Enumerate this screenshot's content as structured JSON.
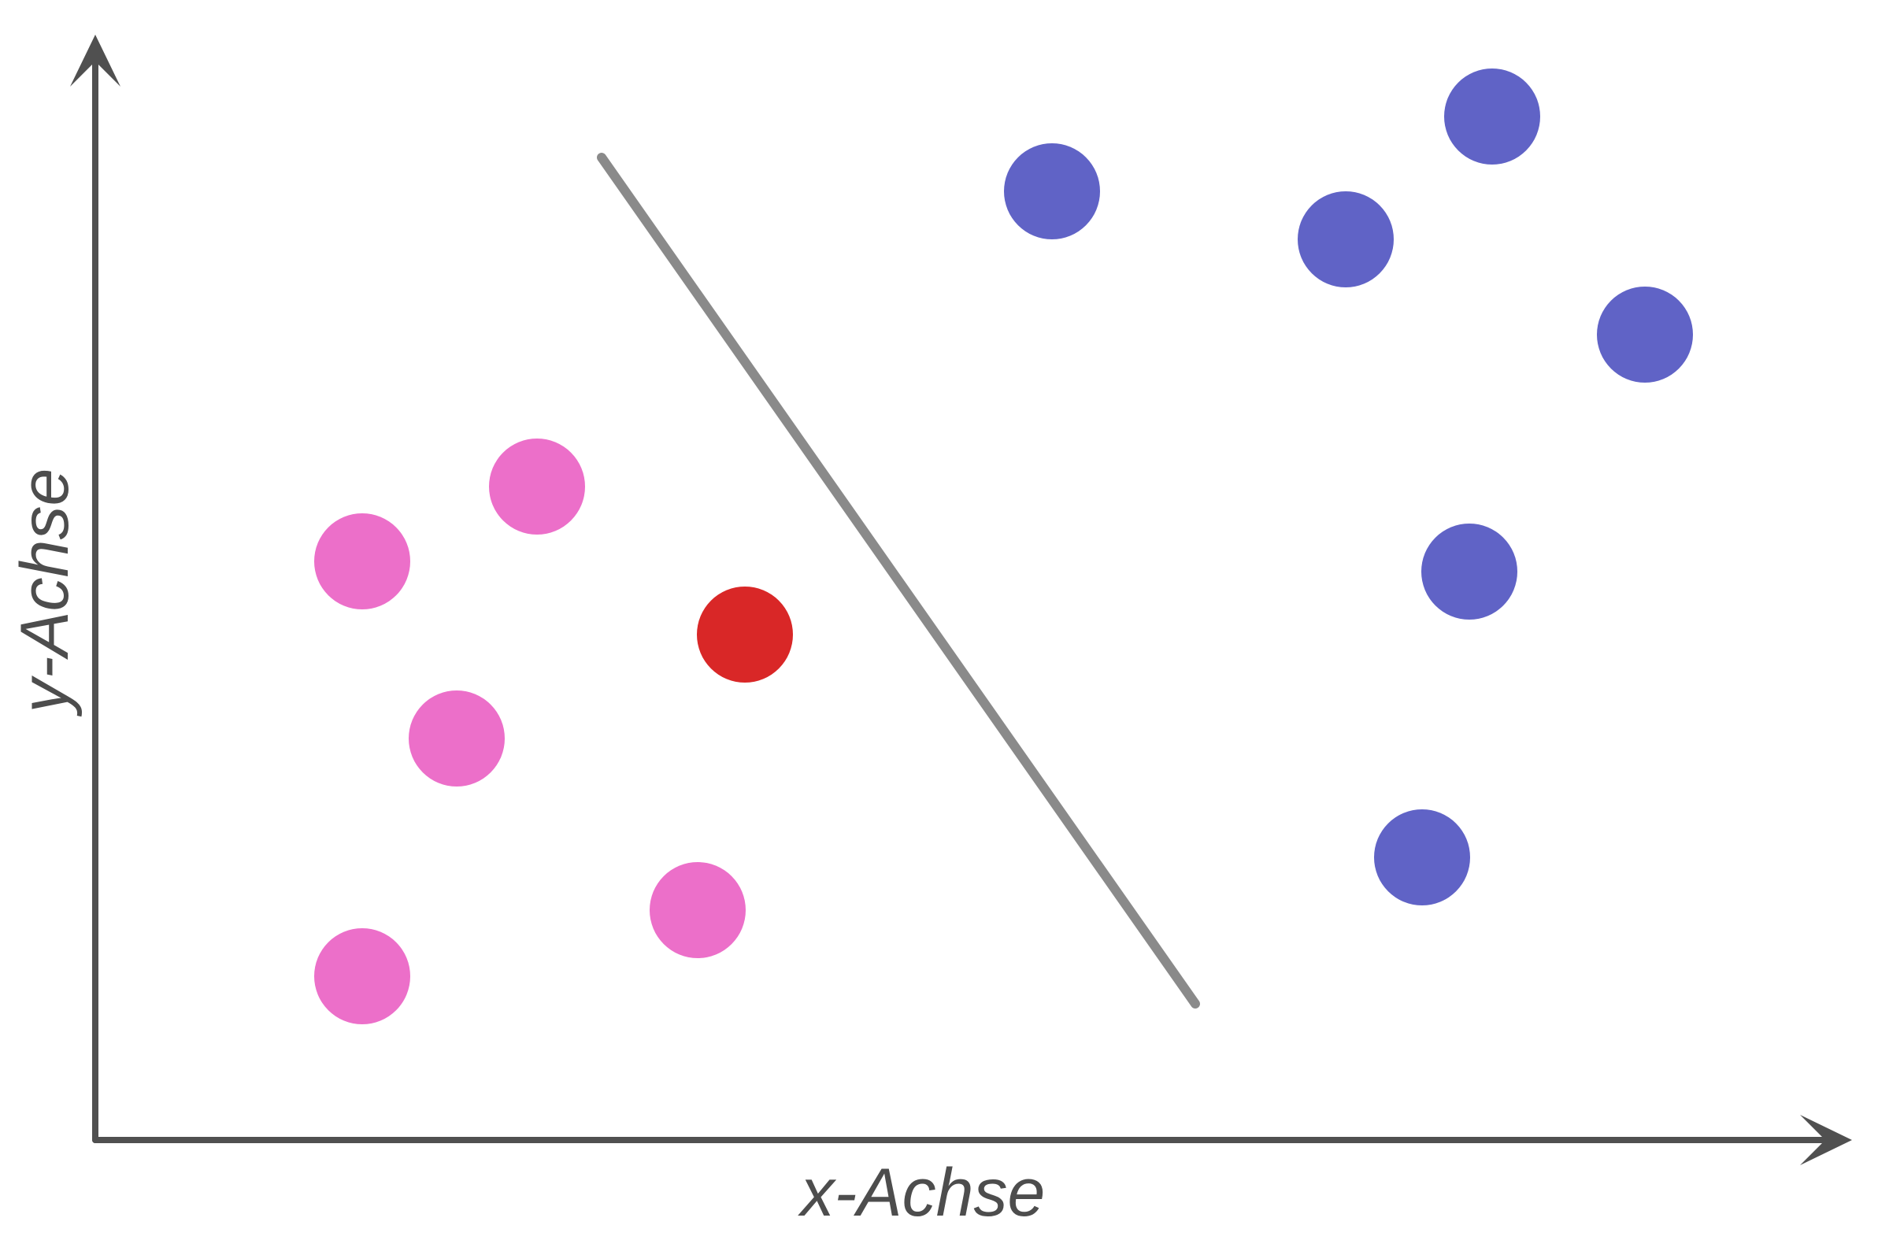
{
  "axes": {
    "x_label": "x-Achse",
    "y_label": "y-Achse",
    "color": "#505050"
  },
  "separator": {
    "color": "#8a8a8a"
  },
  "classes": {
    "pink": {
      "color": "#ec6fc9"
    },
    "red": {
      "color": "#d92727"
    },
    "blue": {
      "color": "#6063c6"
    }
  }
}
